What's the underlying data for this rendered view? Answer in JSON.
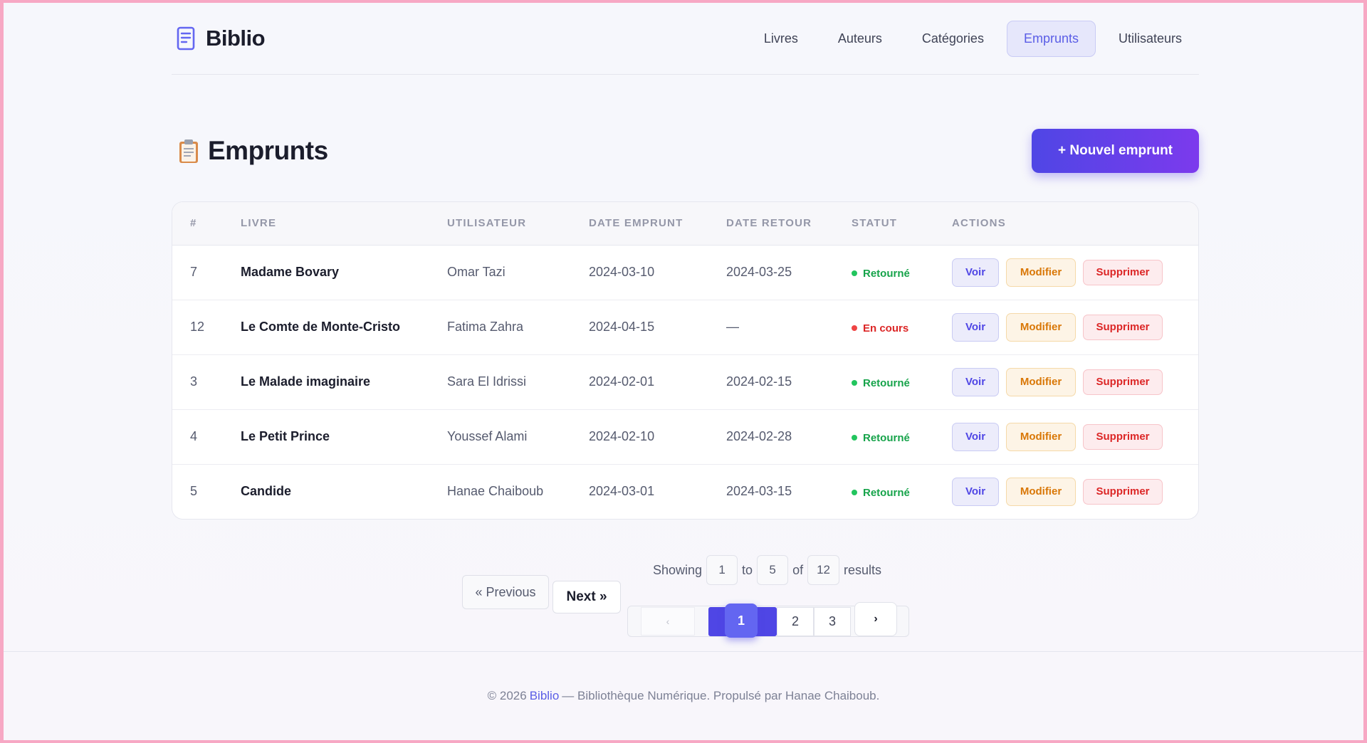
{
  "brand": {
    "name": "Biblio",
    "icon": "book-icon"
  },
  "nav": {
    "items": [
      {
        "label": "Livres",
        "active": false
      },
      {
        "label": "Auteurs",
        "active": false
      },
      {
        "label": "Catégories",
        "active": false
      },
      {
        "label": "Emprunts",
        "active": true
      },
      {
        "label": "Utilisateurs",
        "active": false
      }
    ]
  },
  "page": {
    "title": "Emprunts",
    "icon": "clipboard-icon",
    "new_button": "+ Nouvel emprunt"
  },
  "table": {
    "columns": [
      "#",
      "LIVRE",
      "UTILISATEUR",
      "DATE EMPRUNT",
      "DATE RETOUR",
      "STATUT",
      "ACTIONS"
    ],
    "rows": [
      {
        "id": "7",
        "book": "Madame Bovary",
        "user": "Omar Tazi",
        "borrowed": "2024-03-10",
        "returned": "2024-03-25",
        "status": "Retourné",
        "status_kind": "returned"
      },
      {
        "id": "12",
        "book": "Le Comte de Monte-Cristo",
        "user": "Fatima Zahra",
        "borrowed": "2024-04-15",
        "returned": "—",
        "status": "En cours",
        "status_kind": "ongoing"
      },
      {
        "id": "3",
        "book": "Le Malade imaginaire",
        "user": "Sara El Idrissi",
        "borrowed": "2024-02-01",
        "returned": "2024-02-15",
        "status": "Retourné",
        "status_kind": "returned"
      },
      {
        "id": "4",
        "book": "Le Petit Prince",
        "user": "Youssef Alami",
        "borrowed": "2024-02-10",
        "returned": "2024-02-28",
        "status": "Retourné",
        "status_kind": "returned"
      },
      {
        "id": "5",
        "book": "Candide",
        "user": "Hanae Chaiboub",
        "borrowed": "2024-03-01",
        "returned": "2024-03-15",
        "status": "Retourné",
        "status_kind": "returned"
      }
    ],
    "actions": {
      "view": "Voir",
      "edit": "Modifier",
      "delete": "Supprimer"
    }
  },
  "pagination": {
    "previous": "« Previous",
    "next": "Next »",
    "showing_label": "Showing",
    "to_label": "to",
    "of_label": "of",
    "results_label": "results",
    "from": "1",
    "to": "5",
    "total": "12",
    "prev_arrow": "‹",
    "next_arrow": "›",
    "pages": [
      "1",
      "2",
      "3"
    ],
    "current_page": "1"
  },
  "footer": {
    "prefix": "© 2026",
    "brand": "Biblio",
    "suffix": "— Bibliothèque Numérique. Propulsé par Hanae Chaiboub."
  },
  "colors": {
    "accent": "#4f46e5",
    "accent_end": "#7c3aed",
    "returned": "#16a34a",
    "ongoing": "#dc2626",
    "edit": "#d97706"
  }
}
